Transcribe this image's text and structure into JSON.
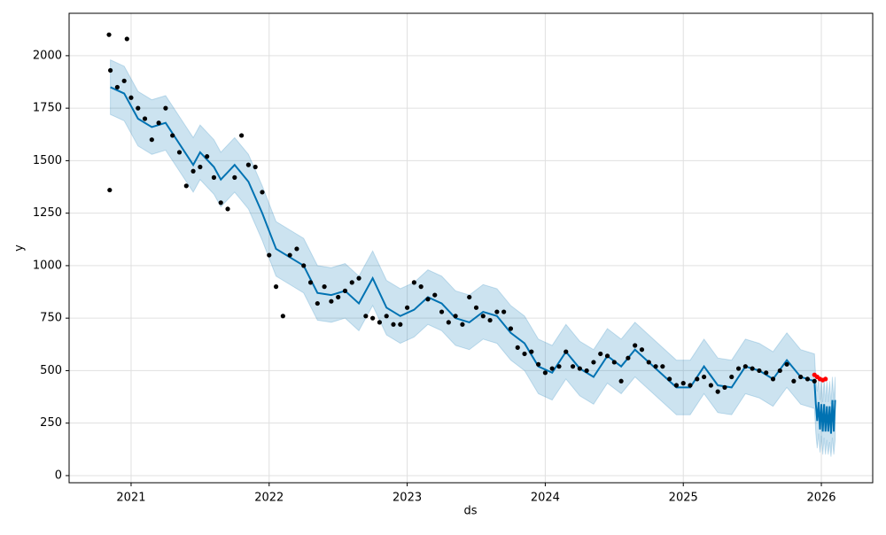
{
  "chart_data": {
    "type": "forecast",
    "xlabel": "ds",
    "ylabel": "y",
    "xlim": [
      2020.551,
      2026.372
    ],
    "ylim": [
      -34,
      2202
    ],
    "xticks": [
      2021,
      2022,
      2023,
      2024,
      2025,
      2026
    ],
    "yticks": [
      0,
      250,
      500,
      750,
      1000,
      1250,
      1500,
      1750,
      2000
    ],
    "grid": true,
    "series": [
      {
        "type": "scatter",
        "color": "#000000",
        "x": [
          2020.84,
          2020.845,
          2020.85,
          2020.9,
          2020.95,
          2020.97,
          2021.0,
          2021.05,
          2021.1,
          2021.15,
          2021.2,
          2021.25,
          2021.3,
          2021.35,
          2021.4,
          2021.45,
          2021.5,
          2021.55,
          2021.6,
          2021.65,
          2021.7,
          2021.75,
          2021.8,
          2021.85,
          2021.9,
          2021.95,
          2022.0,
          2022.05,
          2022.1,
          2022.15,
          2022.2,
          2022.25,
          2022.3,
          2022.35,
          2022.4,
          2022.45,
          2022.5,
          2022.55,
          2022.6,
          2022.65,
          2022.7,
          2022.75,
          2022.8,
          2022.85,
          2022.9,
          2022.95,
          2023.0,
          2023.05,
          2023.1,
          2023.15,
          2023.2,
          2023.25,
          2023.3,
          2023.35,
          2023.4,
          2023.45,
          2023.5,
          2023.55,
          2023.6,
          2023.65,
          2023.7,
          2023.75,
          2023.8,
          2023.85,
          2023.9,
          2023.95,
          2024.0,
          2024.05,
          2024.1,
          2024.15,
          2024.2,
          2024.25,
          2024.3,
          2024.35,
          2024.4,
          2024.45,
          2024.5,
          2024.55,
          2024.6,
          2024.65,
          2024.7,
          2024.75,
          2024.8,
          2024.85,
          2024.9,
          2024.95,
          2025.0,
          2025.05,
          2025.1,
          2025.15,
          2025.2,
          2025.25,
          2025.3,
          2025.35,
          2025.4,
          2025.45,
          2025.5,
          2025.55,
          2025.6,
          2025.65,
          2025.7,
          2025.75,
          2025.8,
          2025.85,
          2025.9,
          2025.95
        ],
        "values": [
          2100,
          1360,
          1930,
          1850,
          1880,
          2080,
          1800,
          1750,
          1700,
          1600,
          1680,
          1750,
          1620,
          1540,
          1380,
          1450,
          1470,
          1520,
          1420,
          1300,
          1270,
          1420,
          1620,
          1480,
          1470,
          1350,
          1050,
          900,
          760,
          1050,
          1080,
          1000,
          920,
          820,
          900,
          830,
          850,
          880,
          920,
          940,
          760,
          750,
          730,
          760,
          720,
          720,
          800,
          920,
          900,
          840,
          860,
          780,
          730,
          760,
          720,
          850,
          800,
          760,
          740,
          780,
          780,
          700,
          610,
          580,
          590,
          530,
          490,
          510,
          520,
          590,
          520,
          510,
          500,
          540,
          580,
          570,
          540,
          450,
          560,
          620,
          600,
          540,
          520,
          520,
          460,
          430,
          440,
          430,
          460,
          470,
          430,
          400,
          420,
          470,
          510,
          520,
          510,
          500,
          490,
          460,
          500,
          530,
          450,
          470,
          460,
          450
        ]
      },
      {
        "type": "scatter",
        "color": "#ff0000",
        "x": [
          2025.95,
          2025.97,
          2025.99,
          2026.01,
          2026.03
        ],
        "values": [
          480,
          470,
          460,
          455,
          460
        ]
      },
      {
        "type": "line",
        "color": "#0072b2",
        "band_color": "#0072b2",
        "x": [
          2020.85,
          2020.95,
          2021.05,
          2021.15,
          2021.25,
          2021.35,
          2021.45,
          2021.5,
          2021.6,
          2021.65,
          2021.75,
          2021.85,
          2021.95,
          2022.05,
          2022.15,
          2022.25,
          2022.35,
          2022.45,
          2022.55,
          2022.65,
          2022.75,
          2022.85,
          2022.95,
          2023.05,
          2023.15,
          2023.25,
          2023.35,
          2023.45,
          2023.55,
          2023.65,
          2023.75,
          2023.85,
          2023.95,
          2024.05,
          2024.15,
          2024.25,
          2024.35,
          2024.45,
          2024.55,
          2024.65,
          2024.75,
          2024.85,
          2024.95,
          2025.05,
          2025.15,
          2025.25,
          2025.35,
          2025.45,
          2025.55,
          2025.65,
          2025.75,
          2025.85,
          2025.95,
          2025.96,
          2025.97,
          2025.98,
          2025.99,
          2026.0,
          2026.01,
          2026.02,
          2026.03,
          2026.04,
          2026.05,
          2026.06,
          2026.07,
          2026.08,
          2026.09,
          2026.1
        ],
        "values": [
          1850,
          1820,
          1700,
          1660,
          1680,
          1580,
          1480,
          1540,
          1470,
          1410,
          1480,
          1400,
          1250,
          1080,
          1040,
          1000,
          870,
          860,
          880,
          820,
          940,
          800,
          760,
          790,
          850,
          820,
          750,
          730,
          780,
          760,
          680,
          630,
          520,
          490,
          590,
          510,
          470,
          570,
          520,
          600,
          540,
          480,
          420,
          420,
          520,
          430,
          420,
          520,
          500,
          460,
          550,
          470,
          450,
          340,
          260,
          350,
          220,
          340,
          210,
          340,
          210,
          330,
          210,
          330,
          200,
          360,
          210,
          360
        ],
        "lower": [
          1720,
          1690,
          1570,
          1530,
          1550,
          1450,
          1350,
          1410,
          1340,
          1280,
          1350,
          1270,
          1120,
          950,
          910,
          870,
          740,
          730,
          750,
          690,
          810,
          670,
          630,
          660,
          720,
          690,
          620,
          600,
          650,
          630,
          550,
          500,
          390,
          360,
          460,
          380,
          340,
          440,
          390,
          470,
          410,
          350,
          290,
          290,
          390,
          300,
          290,
          390,
          370,
          330,
          420,
          340,
          320,
          200,
          130,
          200,
          110,
          190,
          100,
          180,
          100,
          170,
          100,
          160,
          90,
          180,
          100,
          170
        ],
        "upper": [
          1980,
          1950,
          1830,
          1790,
          1810,
          1710,
          1610,
          1670,
          1600,
          1540,
          1610,
          1530,
          1380,
          1210,
          1170,
          1130,
          1000,
          990,
          1010,
          950,
          1070,
          930,
          890,
          920,
          980,
          950,
          880,
          860,
          910,
          890,
          810,
          760,
          650,
          620,
          720,
          640,
          600,
          700,
          650,
          730,
          670,
          610,
          550,
          550,
          650,
          560,
          550,
          650,
          630,
          590,
          680,
          600,
          580,
          460,
          400,
          470,
          360,
          460,
          350,
          460,
          350,
          450,
          350,
          450,
          340,
          470,
          350,
          470
        ]
      }
    ]
  }
}
